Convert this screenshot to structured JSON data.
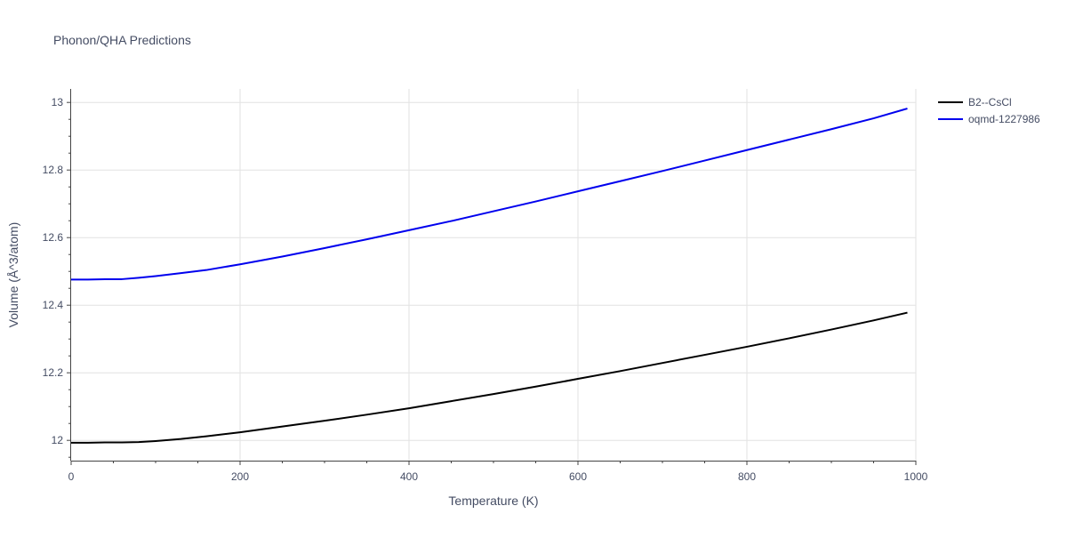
{
  "chart_data": {
    "type": "line",
    "title": "Phonon/QHA Predictions",
    "xlabel": "Temperature (K)",
    "ylabel": "Volume (Å^3/atom)",
    "xlim": [
      0,
      1000
    ],
    "ylim": [
      11.94,
      13.04
    ],
    "xticks": [
      0,
      200,
      400,
      600,
      800,
      1000
    ],
    "xtick_labels": [
      "0",
      "200",
      "400",
      "600",
      "800",
      "1000"
    ],
    "yticks": [
      12,
      12.2,
      12.4,
      12.6,
      12.8,
      13
    ],
    "ytick_labels": [
      "12",
      "12.2",
      "12.4",
      "12.6",
      "12.8",
      "13"
    ],
    "grid": true,
    "legend_position": "top-right",
    "series": [
      {
        "name": "B2--CsCl",
        "color": "#000000",
        "x": [
          0,
          20,
          40,
          60,
          80,
          100,
          130,
          160,
          200,
          250,
          300,
          350,
          400,
          450,
          500,
          550,
          600,
          650,
          700,
          750,
          800,
          850,
          900,
          950,
          990
        ],
        "y": [
          11.993,
          11.993,
          11.994,
          11.994,
          11.995,
          11.998,
          12.004,
          12.012,
          12.024,
          12.041,
          12.058,
          12.076,
          12.095,
          12.116,
          12.137,
          12.159,
          12.182,
          12.205,
          12.229,
          12.253,
          12.277,
          12.302,
          12.328,
          12.355,
          12.378
        ]
      },
      {
        "name": "oqmd-1227986",
        "color": "#0000ee",
        "x": [
          0,
          20,
          40,
          60,
          80,
          100,
          130,
          160,
          200,
          250,
          300,
          350,
          400,
          450,
          500,
          550,
          600,
          650,
          700,
          750,
          800,
          850,
          900,
          950,
          990
        ],
        "y": [
          12.476,
          12.476,
          12.477,
          12.477,
          12.481,
          12.486,
          12.495,
          12.504,
          12.521,
          12.544,
          12.569,
          12.595,
          12.622,
          12.649,
          12.678,
          12.707,
          12.737,
          12.767,
          12.797,
          12.828,
          12.859,
          12.89,
          12.921,
          12.953,
          12.982
        ]
      }
    ]
  }
}
